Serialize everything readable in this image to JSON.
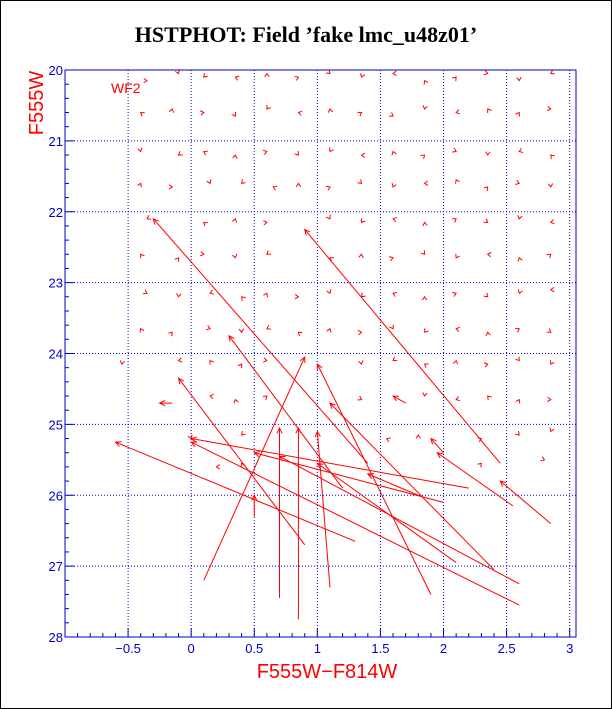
{
  "chart_data": {
    "type": "scatter",
    "title": "HSTPHOT: Field ’fake lmc_u48z01’",
    "xlabel": "F555W−F814W",
    "ylabel": "F555W",
    "panel_label": "WF2",
    "xlim": [
      -1.0,
      3.05
    ],
    "ylim": [
      28,
      20
    ],
    "x_ticks": [
      -0.5,
      0,
      0.5,
      1,
      1.5,
      2,
      2.5,
      3
    ],
    "x_tick_labels": [
      "−0.5",
      "0",
      "0.5",
      "1",
      "1.5",
      "2",
      "2.5",
      "3"
    ],
    "y_ticks": [
      20,
      21,
      22,
      23,
      24,
      25,
      26,
      27,
      28
    ],
    "y_tick_labels": [
      "20",
      "21",
      "22",
      "23",
      "24",
      "25",
      "26",
      "27",
      "28"
    ],
    "grid": true,
    "colors": {
      "data": "#ff0000",
      "axes": "#0000cc",
      "labels": "#ff0000",
      "title": "#000000"
    },
    "series": [
      {
        "values": [
          {
            "x": -0.6,
            "y": 25.25,
            "x2": 1.3,
            "y2": 26.65
          },
          {
            "x": -0.3,
            "y": 22.1,
            "x2": 1.4,
            "y2": 25.55
          },
          {
            "x": -0.25,
            "y": 24.7,
            "x2": -0.15,
            "y2": 24.7
          },
          {
            "x": 0.9,
            "y": 22.25,
            "x2": 2.45,
            "y2": 25.55
          },
          {
            "x": 0.3,
            "y": 23.75,
            "x2": 1.2,
            "y2": 25.9
          },
          {
            "x": -0.1,
            "y": 24.35,
            "x2": 0.9,
            "y2": 26.7
          },
          {
            "x": 0.9,
            "y": 24.05,
            "x2": 0.1,
            "y2": 27.2
          },
          {
            "x": 1.0,
            "y": 24.15,
            "x2": 1.9,
            "y2": 27.4
          },
          {
            "x": 0.0,
            "y": 25.2,
            "x2": 2.2,
            "y2": 25.9
          },
          {
            "x": 0.7,
            "y": 25.05,
            "x2": 0.7,
            "y2": 27.45
          },
          {
            "x": 0.85,
            "y": 25.05,
            "x2": 0.85,
            "y2": 27.75
          },
          {
            "x": 1.0,
            "y": 25.1,
            "x2": 1.1,
            "y2": 27.3
          },
          {
            "x": 1.1,
            "y": 24.7,
            "x2": 2.4,
            "y2": 27.05
          },
          {
            "x": 0.5,
            "y": 25.4,
            "x2": 2.0,
            "y2": 26.1
          },
          {
            "x": 0.0,
            "y": 25.25,
            "x2": 2.6,
            "y2": 27.55
          },
          {
            "x": 0.7,
            "y": 25.45,
            "x2": 2.6,
            "y2": 27.25
          },
          {
            "x": 1.0,
            "y": 25.55,
            "x2": 2.1,
            "y2": 26.95
          },
          {
            "x": 1.4,
            "y": 25.7,
            "x2": 1.8,
            "y2": 26.0
          },
          {
            "x": 1.95,
            "y": 25.4,
            "x2": 2.55,
            "y2": 26.15
          },
          {
            "x": 2.45,
            "y": 25.8,
            "x2": 2.85,
            "y2": 26.4
          },
          {
            "x": 0.5,
            "y": 26.0,
            "x2": 0.5,
            "y2": 26.3
          },
          {
            "x": 1.6,
            "y": 24.6,
            "x2": 1.7,
            "y2": 24.7
          },
          {
            "x": 1.9,
            "y": 25.2,
            "x2": 2.0,
            "y2": 25.4
          }
        ]
      }
    ],
    "markers": [
      {
        "x": -0.35,
        "y": 20.15
      },
      {
        "x": -0.1,
        "y": 20.05
      },
      {
        "x": 0.1,
        "y": 20.1
      },
      {
        "x": 0.35,
        "y": 20.1
      },
      {
        "x": 0.6,
        "y": 20.05
      },
      {
        "x": 0.85,
        "y": 20.1
      },
      {
        "x": 1.1,
        "y": 20.05
      },
      {
        "x": 1.35,
        "y": 20.1
      },
      {
        "x": 1.6,
        "y": 20.05
      },
      {
        "x": 1.85,
        "y": 20.15
      },
      {
        "x": 2.1,
        "y": 20.1
      },
      {
        "x": 2.35,
        "y": 20.05
      },
      {
        "x": 2.6,
        "y": 20.15
      },
      {
        "x": 2.85,
        "y": 20.05
      },
      {
        "x": -0.4,
        "y": 20.6
      },
      {
        "x": -0.15,
        "y": 20.55
      },
      {
        "x": 0.1,
        "y": 20.6
      },
      {
        "x": 0.35,
        "y": 20.65
      },
      {
        "x": 0.6,
        "y": 20.55
      },
      {
        "x": 0.85,
        "y": 20.6
      },
      {
        "x": 1.1,
        "y": 20.55
      },
      {
        "x": 1.35,
        "y": 20.6
      },
      {
        "x": 1.6,
        "y": 20.65
      },
      {
        "x": 1.85,
        "y": 20.55
      },
      {
        "x": 2.1,
        "y": 20.6
      },
      {
        "x": 2.35,
        "y": 20.55
      },
      {
        "x": 2.6,
        "y": 20.6
      },
      {
        "x": 2.85,
        "y": 20.55
      },
      {
        "x": -0.4,
        "y": 21.15
      },
      {
        "x": -0.1,
        "y": 21.2
      },
      {
        "x": 0.1,
        "y": 21.15
      },
      {
        "x": 0.35,
        "y": 21.2
      },
      {
        "x": 0.6,
        "y": 21.15
      },
      {
        "x": 0.85,
        "y": 21.2
      },
      {
        "x": 1.1,
        "y": 21.15
      },
      {
        "x": 1.35,
        "y": 21.2
      },
      {
        "x": 1.6,
        "y": 21.15
      },
      {
        "x": 1.85,
        "y": 21.2
      },
      {
        "x": 2.1,
        "y": 21.15
      },
      {
        "x": 2.35,
        "y": 21.2
      },
      {
        "x": 2.6,
        "y": 21.15
      },
      {
        "x": 2.85,
        "y": 21.2
      },
      {
        "x": -0.4,
        "y": 21.6
      },
      {
        "x": -0.15,
        "y": 21.65
      },
      {
        "x": 0.15,
        "y": 21.6
      },
      {
        "x": 0.4,
        "y": 21.6
      },
      {
        "x": 0.65,
        "y": 21.65
      },
      {
        "x": 0.85,
        "y": 21.6
      },
      {
        "x": 1.1,
        "y": 21.65
      },
      {
        "x": 1.35,
        "y": 21.6
      },
      {
        "x": 1.6,
        "y": 21.65
      },
      {
        "x": 1.85,
        "y": 21.6
      },
      {
        "x": 2.1,
        "y": 21.55
      },
      {
        "x": 2.35,
        "y": 21.65
      },
      {
        "x": 2.6,
        "y": 21.6
      },
      {
        "x": 2.85,
        "y": 21.65
      },
      {
        "x": -0.35,
        "y": 22.1
      },
      {
        "x": 0.1,
        "y": 22.15
      },
      {
        "x": 0.35,
        "y": 22.1
      },
      {
        "x": 0.6,
        "y": 22.15
      },
      {
        "x": 1.1,
        "y": 22.1
      },
      {
        "x": 1.35,
        "y": 22.15
      },
      {
        "x": 1.6,
        "y": 22.1
      },
      {
        "x": 1.85,
        "y": 22.15
      },
      {
        "x": 2.1,
        "y": 22.1
      },
      {
        "x": 2.35,
        "y": 22.15
      },
      {
        "x": 2.6,
        "y": 22.1
      },
      {
        "x": 2.85,
        "y": 22.15
      },
      {
        "x": -0.4,
        "y": 22.6
      },
      {
        "x": -0.1,
        "y": 22.65
      },
      {
        "x": 0.1,
        "y": 22.6
      },
      {
        "x": 0.35,
        "y": 22.65
      },
      {
        "x": 0.6,
        "y": 22.6
      },
      {
        "x": 1.1,
        "y": 22.65
      },
      {
        "x": 1.35,
        "y": 22.6
      },
      {
        "x": 1.6,
        "y": 22.65
      },
      {
        "x": 1.85,
        "y": 22.6
      },
      {
        "x": 2.1,
        "y": 22.65
      },
      {
        "x": 2.35,
        "y": 22.6
      },
      {
        "x": 2.6,
        "y": 22.65
      },
      {
        "x": 2.85,
        "y": 22.6
      },
      {
        "x": -0.35,
        "y": 23.15
      },
      {
        "x": -0.1,
        "y": 23.2
      },
      {
        "x": 0.15,
        "y": 23.15
      },
      {
        "x": 0.4,
        "y": 23.2
      },
      {
        "x": 0.6,
        "y": 23.15
      },
      {
        "x": 0.85,
        "y": 23.2
      },
      {
        "x": 1.1,
        "y": 23.15
      },
      {
        "x": 1.35,
        "y": 23.2
      },
      {
        "x": 1.6,
        "y": 23.15
      },
      {
        "x": 1.85,
        "y": 23.2
      },
      {
        "x": 2.1,
        "y": 23.15
      },
      {
        "x": 2.35,
        "y": 23.2
      },
      {
        "x": 2.6,
        "y": 23.15
      },
      {
        "x": 2.85,
        "y": 23.1
      },
      {
        "x": -0.4,
        "y": 23.65
      },
      {
        "x": -0.15,
        "y": 23.7
      },
      {
        "x": 0.15,
        "y": 23.65
      },
      {
        "x": 0.4,
        "y": 23.7
      },
      {
        "x": 0.6,
        "y": 23.65
      },
      {
        "x": 0.85,
        "y": 23.7
      },
      {
        "x": 1.1,
        "y": 23.65
      },
      {
        "x": 1.35,
        "y": 23.7
      },
      {
        "x": 1.6,
        "y": 23.65
      },
      {
        "x": 1.85,
        "y": 23.7
      },
      {
        "x": 2.1,
        "y": 23.65
      },
      {
        "x": 2.35,
        "y": 23.7
      },
      {
        "x": 2.6,
        "y": 23.65
      },
      {
        "x": 2.85,
        "y": 23.7
      },
      {
        "x": -0.55,
        "y": 24.15
      },
      {
        "x": -0.1,
        "y": 24.1
      },
      {
        "x": 0.15,
        "y": 24.1
      },
      {
        "x": 0.4,
        "y": 24.15
      },
      {
        "x": 0.6,
        "y": 24.1
      },
      {
        "x": 1.35,
        "y": 24.15
      },
      {
        "x": 1.6,
        "y": 24.1
      },
      {
        "x": 1.85,
        "y": 24.15
      },
      {
        "x": 2.1,
        "y": 24.1
      },
      {
        "x": 2.35,
        "y": 24.15
      },
      {
        "x": 2.6,
        "y": 24.1
      },
      {
        "x": 2.85,
        "y": 24.15
      },
      {
        "x": 0.15,
        "y": 24.6
      },
      {
        "x": 0.35,
        "y": 24.65
      },
      {
        "x": 0.6,
        "y": 24.6
      },
      {
        "x": 1.35,
        "y": 24.65
      },
      {
        "x": 1.85,
        "y": 24.6
      },
      {
        "x": 2.1,
        "y": 24.65
      },
      {
        "x": 2.35,
        "y": 24.6
      },
      {
        "x": 2.6,
        "y": 24.65
      },
      {
        "x": 2.85,
        "y": 24.65
      },
      {
        "x": 0.0,
        "y": 25.2
      },
      {
        "x": 0.4,
        "y": 25.15
      },
      {
        "x": 1.55,
        "y": 25.2
      },
      {
        "x": 1.8,
        "y": 25.15
      },
      {
        "x": 2.3,
        "y": 25.2
      },
      {
        "x": 2.6,
        "y": 25.15
      },
      {
        "x": 2.85,
        "y": 25.1
      },
      {
        "x": 0.2,
        "y": 25.6
      },
      {
        "x": 0.4,
        "y": 25.55
      },
      {
        "x": 2.3,
        "y": 25.55
      },
      {
        "x": 2.8,
        "y": 25.5
      }
    ]
  }
}
